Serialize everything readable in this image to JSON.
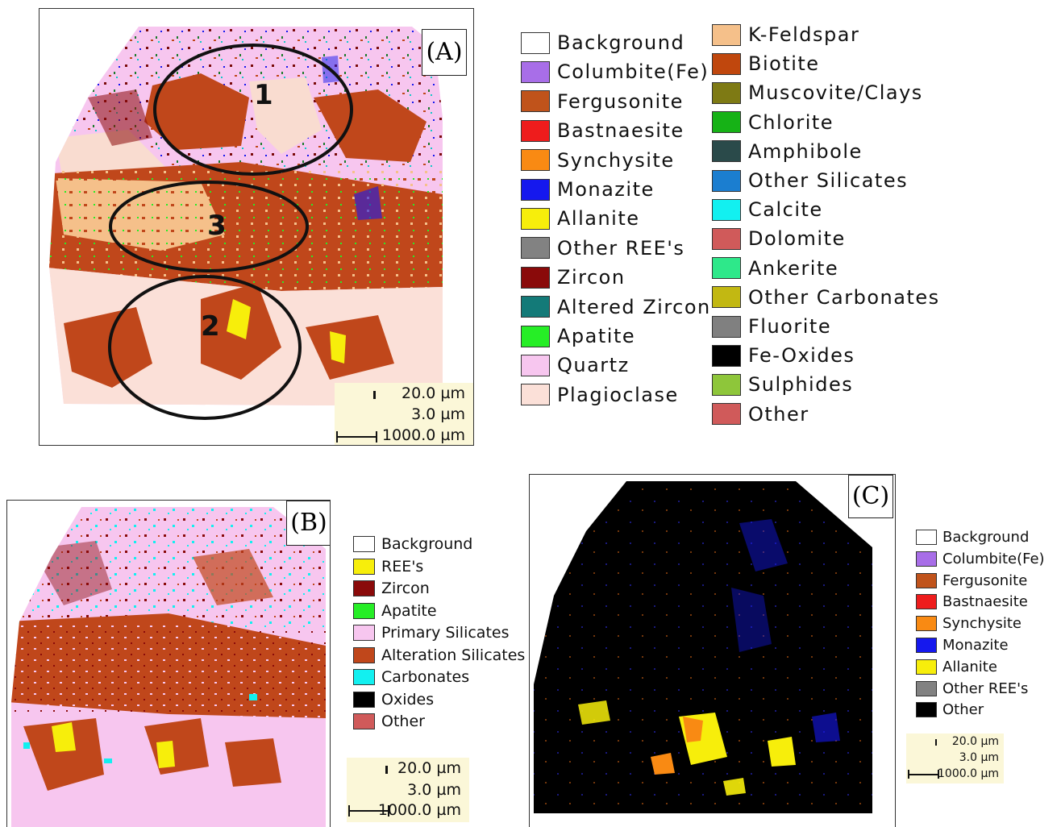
{
  "panel_a": {
    "label": "(A)",
    "regions": [
      "1",
      "3",
      "2"
    ],
    "scale": {
      "line1": "20.0 µm",
      "line2": "3.0 µm",
      "line3": "1000.0 µm"
    },
    "legend_col1": [
      {
        "label": "Background",
        "color": "#ffffff"
      },
      {
        "label": "Columbite(Fe)",
        "color": "#a86ee8"
      },
      {
        "label": "Fergusonite",
        "color": "#c0531b"
      },
      {
        "label": "Bastnaesite",
        "color": "#ee1c1c"
      },
      {
        "label": "Synchysite",
        "color": "#f98a13"
      },
      {
        "label": "Monazite",
        "color": "#1518ee"
      },
      {
        "label": "Allanite",
        "color": "#f7ee0b"
      },
      {
        "label": "Other REE's",
        "color": "#828282"
      },
      {
        "label": "Zircon",
        "color": "#8a0a0a"
      },
      {
        "label": "Altered Zircon",
        "color": "#137a78"
      },
      {
        "label": "Apatite",
        "color": "#26ee26"
      },
      {
        "label": "Quartz",
        "color": "#f7c6ef"
      },
      {
        "label": "Plagioclase",
        "color": "#fbe0d8"
      }
    ],
    "legend_col2": [
      {
        "label": "K-Feldspar",
        "color": "#f5c08a"
      },
      {
        "label": "Biotite",
        "color": "#c0470d"
      },
      {
        "label": "Muscovite/Clays",
        "color": "#7e7a14"
      },
      {
        "label": "Chlorite",
        "color": "#16b216"
      },
      {
        "label": "Amphibole",
        "color": "#2a4a4a"
      },
      {
        "label": "Other Silicates",
        "color": "#1b7ed0"
      },
      {
        "label": "Calcite",
        "color": "#12f0f0"
      },
      {
        "label": "Dolomite",
        "color": "#d05a5a"
      },
      {
        "label": "Ankerite",
        "color": "#2ee88a"
      },
      {
        "label": "Other Carbonates",
        "color": "#c2b812"
      },
      {
        "label": "Fluorite",
        "color": "#808080"
      },
      {
        "label": "Fe-Oxides",
        "color": "#000000"
      },
      {
        "label": "Sulphides",
        "color": "#8ec63a"
      },
      {
        "label": "Other",
        "color": "#d05a5a"
      }
    ]
  },
  "panel_b": {
    "label": "(B)",
    "scale": {
      "line1": "20.0 µm",
      "line2": "3.0 µm",
      "line3": "1000.0 µm"
    },
    "legend": [
      {
        "label": "Background",
        "color": "#ffffff"
      },
      {
        "label": "REE's",
        "color": "#f7ee0b"
      },
      {
        "label": "Zircon",
        "color": "#8a0a0a"
      },
      {
        "label": "Apatite",
        "color": "#26ee26"
      },
      {
        "label": "Primary Silicates",
        "color": "#f7c6ef"
      },
      {
        "label": "Alteration Silicates",
        "color": "#c0471b"
      },
      {
        "label": "Carbonates",
        "color": "#12f0f0"
      },
      {
        "label": "Oxides",
        "color": "#000000"
      },
      {
        "label": "Other",
        "color": "#d05a5a"
      }
    ]
  },
  "panel_c": {
    "label": "(C)",
    "scale": {
      "line1": "20.0 µm",
      "line2": "3.0 µm",
      "line3": "1000.0 µm"
    },
    "legend": [
      {
        "label": "Background",
        "color": "#ffffff"
      },
      {
        "label": "Columbite(Fe)",
        "color": "#a86ee8"
      },
      {
        "label": "Fergusonite",
        "color": "#c0531b"
      },
      {
        "label": "Bastnaesite",
        "color": "#ee1c1c"
      },
      {
        "label": "Synchysite",
        "color": "#f98a13"
      },
      {
        "label": "Monazite",
        "color": "#1518ee"
      },
      {
        "label": "Allanite",
        "color": "#f7ee0b"
      },
      {
        "label": "Other REE's",
        "color": "#828282"
      },
      {
        "label": "Other",
        "color": "#000000"
      }
    ]
  }
}
